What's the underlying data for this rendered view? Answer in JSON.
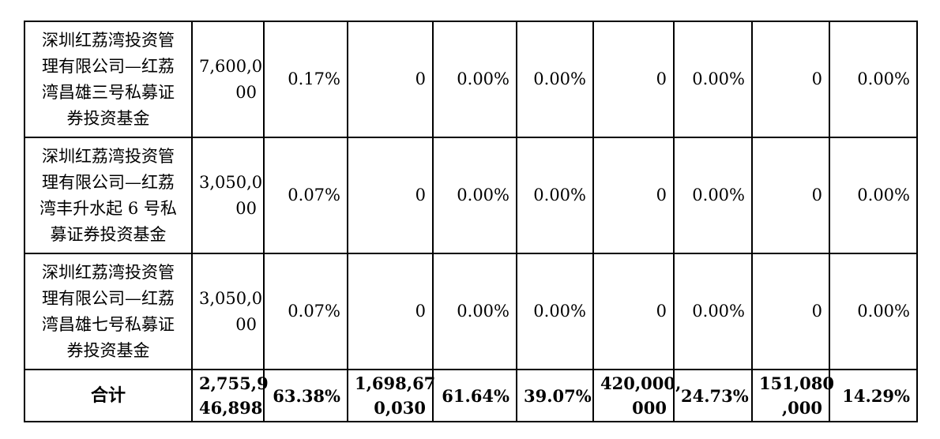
{
  "rows": [
    {
      "name": "深圳红荔湾投资管理有限公司—红荔湾昌雄三号私募证券投资基金",
      "name_lines": [
        "深圳红荔湾投资管",
        "理有限公司—红荔",
        "湾昌雄三号私募证",
        "券投资基金"
      ],
      "c1_lines": [
        "7,600,0",
        "00"
      ],
      "c2": "0.17%",
      "c3": "0",
      "c4": "0.00%",
      "c5": "0.00%",
      "c6": "0",
      "c7": "0.00%",
      "c8": "0",
      "c9": "0.00%"
    },
    {
      "name": "深圳红荔湾投资管理有限公司—红荔湾丰升水起6号私募证券投资基金",
      "name_lines": [
        "深圳红荔湾投资管",
        "理有限公司—红荔",
        "湾丰升水起 6 号私",
        "募证券投资基金"
      ],
      "c1_lines": [
        "3,050,0",
        "00"
      ],
      "c2": "0.07%",
      "c3": "0",
      "c4": "0.00%",
      "c5": "0.00%",
      "c6": "0",
      "c7": "0.00%",
      "c8": "0",
      "c9": "0.00%"
    },
    {
      "name": "深圳红荔湾投资管理有限公司—红荔湾昌雄七号私募证券投资基金",
      "name_lines": [
        "深圳红荔湾投资管",
        "理有限公司—红荔",
        "湾昌雄七号私募证",
        "券投资基金"
      ],
      "c1_lines": [
        "3,050,0",
        "00"
      ],
      "c2": "0.07%",
      "c3": "0",
      "c4": "0.00%",
      "c5": "0.00%",
      "c6": "0",
      "c7": "0.00%",
      "c8": "0",
      "c9": "0.00%"
    }
  ],
  "total": {
    "label": "合计",
    "c1_lines": [
      "2,755,9",
      "46,898"
    ],
    "c2": "63.38%",
    "c3_lines": [
      "1,698,67",
      "0,030"
    ],
    "c4": "61.64%",
    "c5": "39.07%",
    "c6_lines": [
      "420,000,",
      "000"
    ],
    "c7": "24.73%",
    "c8_lines": [
      "151,080",
      ",000"
    ],
    "c9": "14.29%"
  }
}
